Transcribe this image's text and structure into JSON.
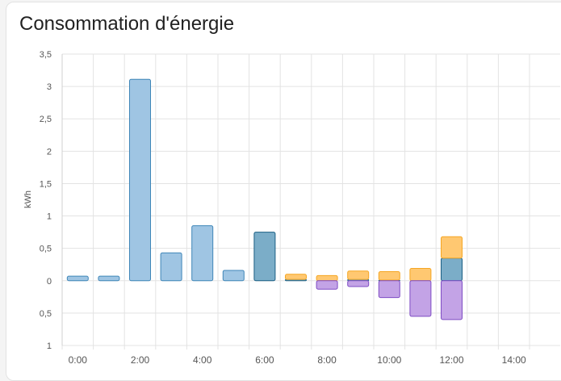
{
  "card": {
    "title": "Consommation d'énergie"
  },
  "chart_data": {
    "type": "bar",
    "stacked": true,
    "title": "",
    "xlabel": "",
    "ylabel": "kWh",
    "ylim": [
      -1,
      3.5
    ],
    "y_ticks": [
      3.5,
      3,
      2.5,
      2,
      1.5,
      1,
      0.5,
      0,
      -0.5,
      -1
    ],
    "y_tick_labels": [
      "3,5",
      "3",
      "2,5",
      "2",
      "1,5",
      "1",
      "0,5",
      "0",
      "0,5",
      "1"
    ],
    "x_tick_labels": [
      "0:00",
      "2:00",
      "4:00",
      "6:00",
      "8:00",
      "10:00",
      "12:00",
      "14:00"
    ],
    "categories": [
      "0:00",
      "1:00",
      "2:00",
      "3:00",
      "4:00",
      "5:00",
      "6:00",
      "7:00",
      "8:00",
      "9:00",
      "10:00",
      "11:00",
      "12:00"
    ],
    "grid": true,
    "legend": "none",
    "series": [
      {
        "color": "#9fc5e3",
        "stroke": "#3f86b8",
        "values": [
          0.07,
          0.07,
          3.11,
          0.43,
          0.85,
          0.16,
          0.0,
          0.0,
          0.0,
          0.0,
          0.0,
          0.0,
          0.0
        ]
      },
      {
        "color": "#7badc8",
        "stroke": "#1b5f84",
        "values": [
          0.0,
          0.0,
          0.0,
          0.0,
          0.0,
          0.0,
          0.75,
          0.02,
          0.0,
          0.02,
          0.01,
          0.0,
          0.35
        ]
      },
      {
        "color": "#ffc871",
        "stroke": "#f5a623",
        "values": [
          0.0,
          0.0,
          0.0,
          0.0,
          0.0,
          0.0,
          0.0,
          0.08,
          0.08,
          0.13,
          0.13,
          0.19,
          0.33
        ]
      },
      {
        "color": "#c3a3e6",
        "stroke": "#7e4cc4",
        "values": [
          0.0,
          0.0,
          0.0,
          0.0,
          0.0,
          0.0,
          0.0,
          0.0,
          -0.13,
          -0.09,
          -0.26,
          -0.55,
          -0.6
        ]
      }
    ]
  }
}
